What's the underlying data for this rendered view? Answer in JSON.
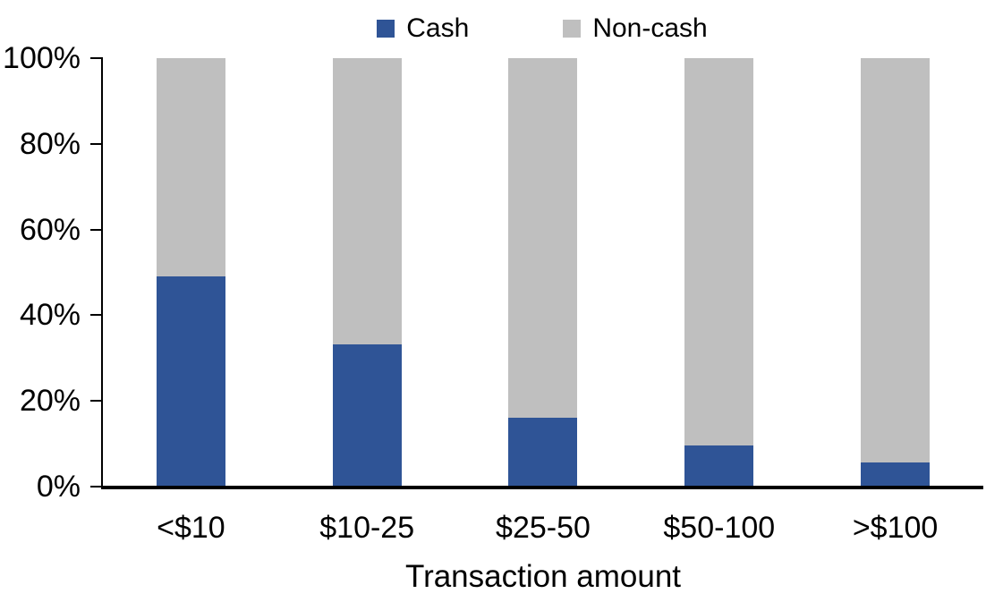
{
  "chart_data": {
    "type": "bar",
    "stacked": true,
    "stacked_total": 100,
    "title": "",
    "xlabel": "Transaction amount",
    "ylabel": "",
    "categories": [
      "<$10",
      "$10-25",
      "$25-50",
      "$50-100",
      ">$100"
    ],
    "series": [
      {
        "name": "Cash",
        "color": "#2F5496",
        "values": [
          49,
          33,
          16,
          9.5,
          5.5
        ]
      },
      {
        "name": "Non-cash",
        "color": "#BFBFBF",
        "values": [
          51,
          67,
          84,
          90.5,
          94.5
        ]
      }
    ],
    "ylim": [
      0,
      100
    ],
    "y_tick_labels": [
      "100%",
      "80%",
      "60%",
      "40%",
      "20%",
      "0%"
    ],
    "grid": false,
    "legend_position": "top-center",
    "axis_color": "#000000",
    "text_color": "#000000",
    "background_color": "#FFFFFF"
  }
}
